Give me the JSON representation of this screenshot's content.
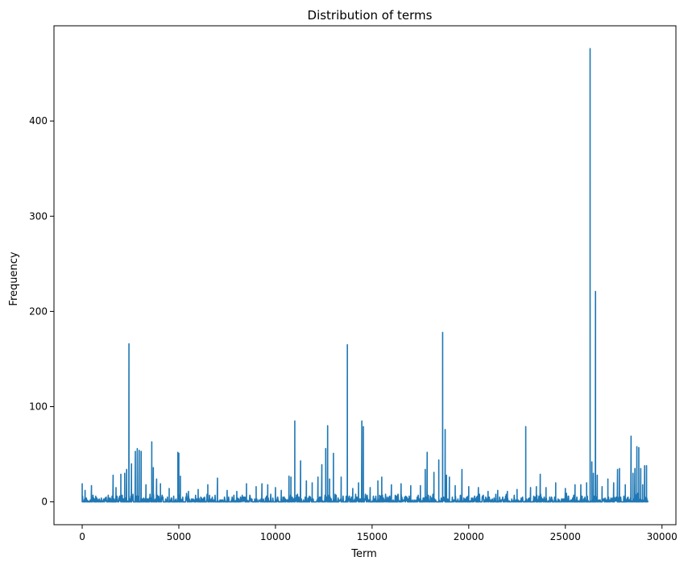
{
  "chart_data": {
    "type": "line",
    "title": "Distribution of terms",
    "xlabel": "Term",
    "ylabel": "Frequency",
    "xlim": [
      -1460,
      30720
    ],
    "ylim": [
      -24,
      500
    ],
    "xticks": [
      0,
      5000,
      10000,
      15000,
      20000,
      25000,
      30000
    ],
    "yticks": [
      0,
      100,
      200,
      300,
      400
    ],
    "grid": false,
    "series_color": "#1f77b4",
    "x_extent": [
      0,
      29260
    ],
    "baseline_noise_max": 9,
    "series": [
      {
        "peaks": [
          [
            0,
            19
          ],
          [
            150,
            12
          ],
          [
            480,
            17
          ],
          [
            1600,
            28
          ],
          [
            1750,
            15
          ],
          [
            2000,
            29
          ],
          [
            2200,
            30
          ],
          [
            2300,
            34
          ],
          [
            2420,
            166
          ],
          [
            2550,
            40
          ],
          [
            2750,
            53
          ],
          [
            2850,
            56
          ],
          [
            2950,
            54
          ],
          [
            3050,
            53
          ],
          [
            3300,
            18
          ],
          [
            3600,
            63
          ],
          [
            3680,
            36
          ],
          [
            3850,
            24
          ],
          [
            4050,
            19
          ],
          [
            4500,
            14
          ],
          [
            4950,
            52
          ],
          [
            5000,
            51
          ],
          [
            5080,
            27
          ],
          [
            5500,
            11
          ],
          [
            6000,
            13
          ],
          [
            6500,
            18
          ],
          [
            7000,
            25
          ],
          [
            7500,
            12
          ],
          [
            8000,
            11
          ],
          [
            8500,
            19
          ],
          [
            9000,
            16
          ],
          [
            9300,
            19
          ],
          [
            9600,
            18
          ],
          [
            10000,
            15
          ],
          [
            10300,
            12
          ],
          [
            10700,
            27
          ],
          [
            10800,
            26
          ],
          [
            11000,
            85
          ],
          [
            11300,
            43
          ],
          [
            11600,
            22
          ],
          [
            11900,
            20
          ],
          [
            12200,
            26
          ],
          [
            12400,
            39
          ],
          [
            12600,
            56
          ],
          [
            12700,
            80
          ],
          [
            12800,
            24
          ],
          [
            13000,
            51
          ],
          [
            13400,
            26
          ],
          [
            13720,
            165
          ],
          [
            14000,
            14
          ],
          [
            14300,
            20
          ],
          [
            14470,
            85
          ],
          [
            14550,
            79
          ],
          [
            14900,
            15
          ],
          [
            15300,
            22
          ],
          [
            15500,
            26
          ],
          [
            16000,
            18
          ],
          [
            16500,
            19
          ],
          [
            17000,
            17
          ],
          [
            17500,
            17
          ],
          [
            17750,
            34
          ],
          [
            17850,
            52
          ],
          [
            18200,
            31
          ],
          [
            18450,
            44
          ],
          [
            18650,
            178
          ],
          [
            18780,
            76
          ],
          [
            18850,
            28
          ],
          [
            19000,
            26
          ],
          [
            19300,
            17
          ],
          [
            19650,
            34
          ],
          [
            20000,
            16
          ],
          [
            20500,
            15
          ],
          [
            21000,
            11
          ],
          [
            21500,
            12
          ],
          [
            22000,
            11
          ],
          [
            22500,
            13
          ],
          [
            22950,
            79
          ],
          [
            23200,
            15
          ],
          [
            23500,
            16
          ],
          [
            23700,
            29
          ],
          [
            24000,
            15
          ],
          [
            24500,
            20
          ],
          [
            25000,
            14
          ],
          [
            25500,
            18
          ],
          [
            25800,
            18
          ],
          [
            26100,
            20
          ],
          [
            26280,
            476
          ],
          [
            26370,
            42
          ],
          [
            26450,
            30
          ],
          [
            26560,
            221
          ],
          [
            26650,
            28
          ],
          [
            26900,
            16
          ],
          [
            27200,
            24
          ],
          [
            27500,
            20
          ],
          [
            27700,
            34
          ],
          [
            27800,
            35
          ],
          [
            28100,
            18
          ],
          [
            28400,
            69
          ],
          [
            28500,
            30
          ],
          [
            28600,
            35
          ],
          [
            28700,
            58
          ],
          [
            28800,
            57
          ],
          [
            28900,
            35
          ],
          [
            29000,
            18
          ],
          [
            29100,
            38
          ],
          [
            29200,
            38
          ],
          [
            29260,
            1
          ]
        ]
      }
    ]
  }
}
